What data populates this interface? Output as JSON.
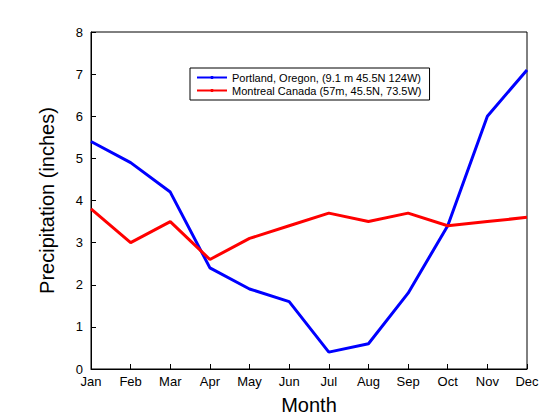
{
  "chart_data": {
    "type": "line",
    "x_label": "Month",
    "y_label": "Precipitation (inches)",
    "categories": [
      "Jan",
      "Feb",
      "Mar",
      "Apr",
      "May",
      "Jun",
      "Jul",
      "Aug",
      "Sep",
      "Oct",
      "Nov",
      "Dec"
    ],
    "series": [
      {
        "name": "Portland, Oregon, (9.1 m 45.5N 124W)",
        "color": "#0000ff",
        "values": [
          5.4,
          4.9,
          4.2,
          2.4,
          1.9,
          1.6,
          0.4,
          0.6,
          1.8,
          3.4,
          6.0,
          7.1
        ]
      },
      {
        "name": "Montreal Canada (57m, 45.5N, 73.5W)",
        "color": "#ff0000",
        "values": [
          3.8,
          3.0,
          3.5,
          2.6,
          3.1,
          3.4,
          3.7,
          3.5,
          3.7,
          3.4,
          3.5,
          3.6
        ]
      }
    ],
    "ylim": [
      0,
      8
    ],
    "yticks": [
      0,
      1,
      2,
      3,
      4,
      5,
      6,
      7,
      8
    ],
    "grid": false,
    "legend": "upper center"
  }
}
